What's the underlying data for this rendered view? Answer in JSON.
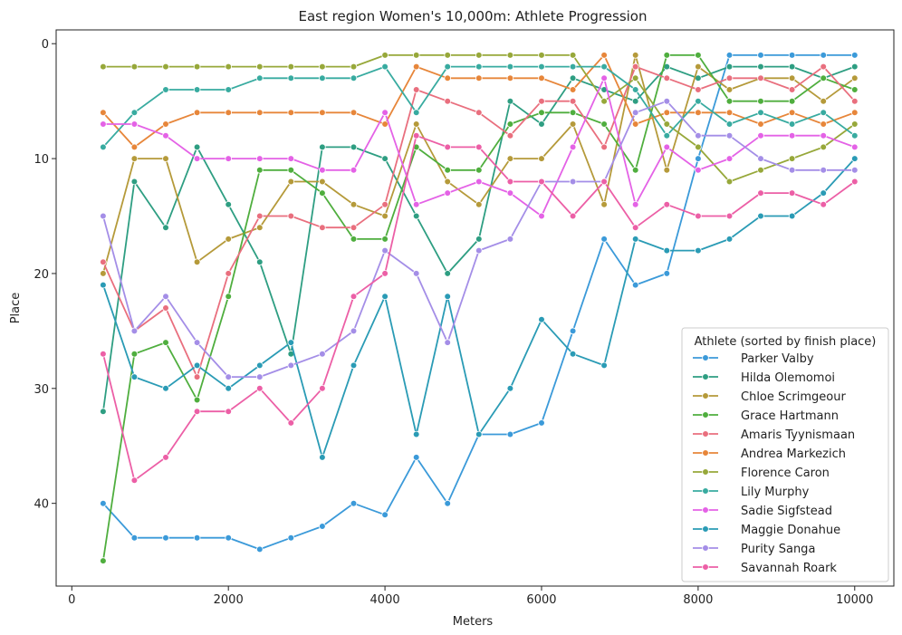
{
  "chart_data": {
    "type": "line",
    "title": "East region Women's 10,000m: Athlete Progression",
    "xlabel": "Meters",
    "ylabel": "Place",
    "xlim": [
      -200,
      10500
    ],
    "ylim": [
      47.2,
      -1.2
    ],
    "y_inverted": true,
    "xticks": [
      0,
      2000,
      4000,
      6000,
      8000,
      10000
    ],
    "yticks": [
      0,
      10,
      20,
      30,
      40
    ],
    "grid": false,
    "legend": {
      "title": "Athlete (sorted by finish place)",
      "placement": "lower-right"
    },
    "x": [
      400,
      800,
      1200,
      1600,
      2000,
      2400,
      2800,
      3200,
      3600,
      4000,
      4400,
      4800,
      5200,
      5600,
      6000,
      6400,
      6800,
      7200,
      7600,
      8000,
      8400,
      8800,
      9200,
      9600,
      10000
    ],
    "series": [
      {
        "name": "Parker Valby",
        "color": "#3b9ad9",
        "values": [
          40,
          43,
          43,
          43,
          43,
          44,
          43,
          42,
          40,
          41,
          36,
          40,
          34,
          34,
          33,
          25,
          17,
          21,
          20,
          10,
          1,
          1,
          1,
          1,
          1
        ]
      },
      {
        "name": "Hilda Olemomoi",
        "color": "#2e9e82",
        "values": [
          32,
          12,
          16,
          9,
          14,
          19,
          27,
          9,
          9,
          10,
          15,
          20,
          17,
          5,
          7,
          3,
          4,
          5,
          2,
          3,
          2,
          2,
          2,
          3,
          2
        ]
      },
      {
        "name": "Chloe Scrimgeour",
        "color": "#b59a3a",
        "values": [
          20,
          10,
          10,
          19,
          17,
          16,
          12,
          12,
          14,
          15,
          7,
          12,
          14,
          10,
          10,
          7,
          14,
          1,
          11,
          2,
          4,
          3,
          3,
          5,
          3
        ]
      },
      {
        "name": "Grace Hartmann",
        "color": "#4fae3e",
        "values": [
          45,
          27,
          26,
          31,
          22,
          11,
          11,
          13,
          17,
          17,
          9,
          11,
          11,
          7,
          6,
          6,
          7,
          11,
          1,
          1,
          5,
          5,
          5,
          3,
          4
        ]
      },
      {
        "name": "Amaris Tyynismaan",
        "color": "#e96f7e",
        "values": [
          19,
          25,
          23,
          29,
          20,
          15,
          15,
          16,
          16,
          14,
          4,
          5,
          6,
          8,
          5,
          5,
          9,
          2,
          3,
          4,
          3,
          3,
          4,
          2,
          5
        ]
      },
      {
        "name": "Andrea Markezich",
        "color": "#e7863a",
        "values": [
          6,
          9,
          7,
          6,
          6,
          6,
          6,
          6,
          6,
          7,
          2,
          3,
          3,
          3,
          3,
          4,
          1,
          7,
          6,
          6,
          6,
          7,
          6,
          7,
          6
        ]
      },
      {
        "name": "Florence Caron",
        "color": "#97a83a",
        "values": [
          2,
          2,
          2,
          2,
          2,
          2,
          2,
          2,
          2,
          1,
          1,
          1,
          1,
          1,
          1,
          1,
          5,
          3,
          7,
          9,
          12,
          11,
          10,
          9,
          7
        ]
      },
      {
        "name": "Lily Murphy",
        "color": "#38aba0",
        "values": [
          9,
          6,
          4,
          4,
          4,
          3,
          3,
          3,
          3,
          2,
          6,
          2,
          2,
          2,
          2,
          2,
          2,
          4,
          8,
          5,
          7,
          6,
          7,
          6,
          8
        ]
      },
      {
        "name": "Sadie Sigfstead",
        "color": "#e462e6",
        "values": [
          7,
          7,
          8,
          10,
          10,
          10,
          10,
          11,
          11,
          6,
          14,
          13,
          12,
          13,
          15,
          9,
          3,
          14,
          9,
          11,
          10,
          8,
          8,
          8,
          9
        ]
      },
      {
        "name": "Maggie Donahue",
        "color": "#2a9bb5",
        "values": [
          21,
          29,
          30,
          28,
          30,
          28,
          26,
          36,
          28,
          22,
          34,
          22,
          34,
          30,
          24,
          27,
          28,
          17,
          18,
          18,
          17,
          15,
          15,
          13,
          10
        ]
      },
      {
        "name": "Purity Sanga",
        "color": "#a48ee7",
        "values": [
          15,
          25,
          22,
          26,
          29,
          29,
          28,
          27,
          25,
          18,
          20,
          26,
          18,
          17,
          12,
          12,
          12,
          6,
          5,
          8,
          8,
          10,
          11,
          11,
          11
        ]
      },
      {
        "name": "Savannah Roark",
        "color": "#ec5fa6",
        "values": [
          27,
          38,
          36,
          32,
          32,
          30,
          33,
          30,
          22,
          20,
          8,
          9,
          9,
          12,
          12,
          15,
          12,
          16,
          14,
          15,
          15,
          13,
          13,
          14,
          12
        ]
      }
    ]
  }
}
